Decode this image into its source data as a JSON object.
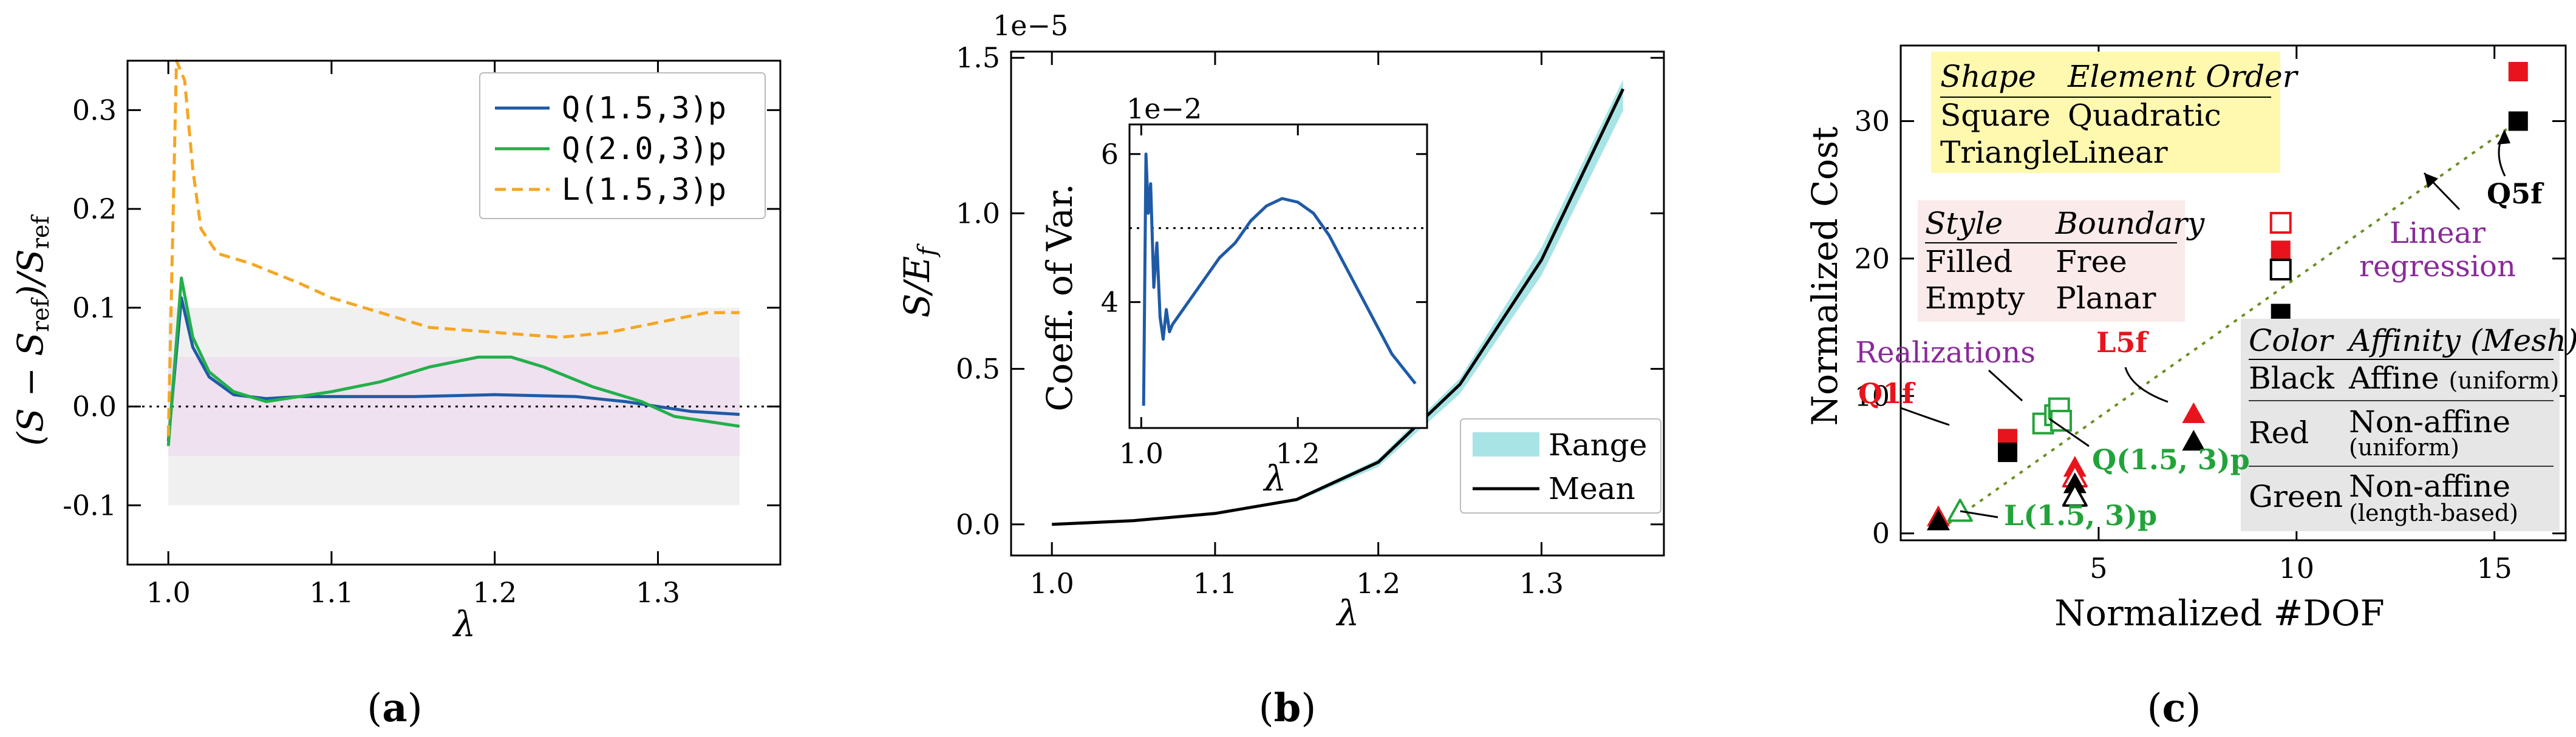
{
  "chart_data": [
    {
      "id": "a",
      "type": "line",
      "panel_label": "(a)",
      "xlabel": "λ",
      "ylabel": "(S − S_ref)/S_ref",
      "xlim": [
        0.975,
        1.375
      ],
      "ylim": [
        -0.16,
        0.35
      ],
      "xticks": [
        1.0,
        1.1,
        1.2,
        1.3
      ],
      "xtick_labels": [
        "1.0",
        "1.1",
        "1.2",
        "1.3"
      ],
      "yticks": [
        -0.1,
        0.0,
        0.1,
        0.2,
        0.3
      ],
      "ytick_labels": [
        "-0.1",
        "0.0",
        "0.1",
        "0.2",
        "0.3"
      ],
      "bands": [
        {
          "name": "±10% band",
          "x": [
            1.0,
            1.35
          ],
          "y": [
            -0.1,
            0.1
          ],
          "color": "#f0f0f0"
        },
        {
          "name": "±5% band",
          "x": [
            1.0,
            1.35
          ],
          "y": [
            -0.05,
            0.05
          ],
          "color": "#efe1ef"
        }
      ],
      "hline": 0.0,
      "legend_position": "top-right",
      "series": [
        {
          "name": "Q(1.5,3)p",
          "color": "#1f5aa6",
          "dash": false,
          "x": [
            1.0,
            1.008,
            1.015,
            1.025,
            1.04,
            1.06,
            1.08,
            1.1,
            1.15,
            1.2,
            1.25,
            1.28,
            1.3,
            1.32,
            1.35
          ],
          "y": [
            -0.035,
            0.11,
            0.06,
            0.03,
            0.012,
            0.008,
            0.01,
            0.01,
            0.01,
            0.012,
            0.01,
            0.005,
            0.0,
            -0.005,
            -0.008
          ]
        },
        {
          "name": "Q(2.0,3)p",
          "color": "#22b04a",
          "dash": false,
          "x": [
            1.0,
            1.008,
            1.015,
            1.025,
            1.04,
            1.06,
            1.08,
            1.1,
            1.13,
            1.16,
            1.19,
            1.21,
            1.23,
            1.26,
            1.29,
            1.31,
            1.33,
            1.35
          ],
          "y": [
            -0.04,
            0.13,
            0.07,
            0.035,
            0.015,
            0.005,
            0.01,
            0.015,
            0.025,
            0.04,
            0.05,
            0.05,
            0.04,
            0.02,
            0.005,
            -0.01,
            -0.015,
            -0.02
          ]
        },
        {
          "name": "L(1.5,3)p",
          "color": "#f5a623",
          "dash": true,
          "x": [
            1.0,
            1.005,
            1.01,
            1.015,
            1.02,
            1.03,
            1.05,
            1.08,
            1.1,
            1.13,
            1.16,
            1.2,
            1.24,
            1.27,
            1.3,
            1.33,
            1.35
          ],
          "y": [
            -0.03,
            0.35,
            0.33,
            0.24,
            0.18,
            0.155,
            0.145,
            0.125,
            0.11,
            0.095,
            0.08,
            0.075,
            0.07,
            0.075,
            0.085,
            0.095,
            0.095
          ]
        }
      ]
    },
    {
      "id": "b",
      "type": "line",
      "panel_label": "(b)",
      "xlabel": "λ",
      "ylabel": "S/E_f",
      "y_offset_label": "1e−5",
      "xlim": [
        0.975,
        1.375
      ],
      "ylim": [
        -0.1,
        1.52
      ],
      "xticks": [
        1.0,
        1.1,
        1.2,
        1.3
      ],
      "xtick_labels": [
        "1.0",
        "1.1",
        "1.2",
        "1.3"
      ],
      "yticks": [
        0.0,
        0.5,
        1.0,
        1.5
      ],
      "ytick_labels": [
        "0.0",
        "0.5",
        "1.0",
        "1.5"
      ],
      "legend_position": "bottom-right",
      "legend": [
        {
          "name": "Range",
          "color": "#a8e4e6",
          "kind": "patch"
        },
        {
          "name": "Mean",
          "color": "#000000",
          "kind": "line"
        }
      ],
      "series": [
        {
          "name": "Mean",
          "color": "#000000",
          "x": [
            1.0,
            1.05,
            1.1,
            1.15,
            1.2,
            1.25,
            1.3,
            1.35
          ],
          "y": [
            0.0,
            0.012,
            0.035,
            0.08,
            0.2,
            0.45,
            0.85,
            1.4
          ]
        }
      ],
      "range_band": {
        "name": "Range",
        "x": [
          1.0,
          1.05,
          1.1,
          1.15,
          1.2,
          1.25,
          1.3,
          1.35
        ],
        "lower": [
          0.0,
          0.011,
          0.032,
          0.074,
          0.185,
          0.42,
          0.8,
          1.33
        ],
        "upper": [
          0.0,
          0.013,
          0.037,
          0.085,
          0.21,
          0.47,
          0.89,
          1.43
        ]
      },
      "inset": {
        "type": "line",
        "ylabel": "Coeff. of Var.",
        "xlabel": "λ",
        "y_offset_label": "1e−2",
        "xlim": [
          0.985,
          1.365
        ],
        "ylim": [
          2.3,
          6.4
        ],
        "xticks": [
          1.0,
          1.2
        ],
        "xtick_labels": [
          "1.0",
          "1.2"
        ],
        "yticks": [
          4,
          6
        ],
        "ytick_labels": [
          "4",
          "6"
        ],
        "hline": 5.0,
        "series": [
          {
            "name": "Coeff. of Var.",
            "color": "#1f5aa6",
            "x": [
              1.003,
              1.006,
              1.009,
              1.012,
              1.016,
              1.02,
              1.024,
              1.028,
              1.032,
              1.036,
              1.04,
              1.05,
              1.06,
              1.08,
              1.1,
              1.12,
              1.14,
              1.16,
              1.18,
              1.2,
              1.22,
              1.24,
              1.26,
              1.28,
              1.3,
              1.32,
              1.35
            ],
            "y": [
              2.6,
              6.0,
              5.2,
              5.6,
              4.2,
              4.8,
              3.8,
              3.5,
              3.9,
              3.6,
              3.7,
              3.85,
              4.0,
              4.3,
              4.6,
              4.8,
              5.1,
              5.3,
              5.4,
              5.35,
              5.2,
              4.9,
              4.5,
              4.1,
              3.7,
              3.3,
              2.9
            ]
          }
        ]
      }
    },
    {
      "id": "c",
      "type": "scatter",
      "panel_label": "(c)",
      "xlabel": "Normalized #DOF",
      "ylabel": "Normalized Cost",
      "xlim": [
        0.0,
        16.8
      ],
      "ylim": [
        -0.5,
        35.5
      ],
      "xticks": [
        5,
        10,
        15
      ],
      "xtick_labels": [
        "5",
        "10",
        "15"
      ],
      "yticks": [
        0,
        10,
        20,
        30
      ],
      "ytick_labels": [
        "0",
        "10",
        "20",
        "30"
      ],
      "regression": {
        "label": "Linear regression",
        "x": [
          1.0,
          15.6
        ],
        "y": [
          0.3,
          30.0
        ],
        "color": "#6b8e23"
      },
      "points": [
        {
          "x": 15.6,
          "y": 33.6,
          "shape": "square",
          "filled": true,
          "color": "#e8141c"
        },
        {
          "x": 15.6,
          "y": 30.0,
          "shape": "square",
          "filled": true,
          "color": "#000000"
        },
        {
          "x": 9.6,
          "y": 22.6,
          "shape": "square",
          "filled": false,
          "color": "#e8141c"
        },
        {
          "x": 9.6,
          "y": 20.6,
          "shape": "square",
          "filled": true,
          "color": "#e8141c"
        },
        {
          "x": 9.6,
          "y": 19.2,
          "shape": "square",
          "filled": false,
          "color": "#000000"
        },
        {
          "x": 9.6,
          "y": 16.0,
          "shape": "square",
          "filled": true,
          "color": "#000000"
        },
        {
          "x": 2.7,
          "y": 6.9,
          "shape": "square",
          "filled": true,
          "color": "#e8141c"
        },
        {
          "x": 2.7,
          "y": 5.9,
          "shape": "square",
          "filled": true,
          "color": "#000000"
        },
        {
          "x": 3.6,
          "y": 8.0,
          "shape": "square",
          "filled": false,
          "color": "#22a33a"
        },
        {
          "x": 3.9,
          "y": 8.6,
          "shape": "square",
          "filled": false,
          "color": "#22a33a"
        },
        {
          "x": 4.0,
          "y": 9.1,
          "shape": "square",
          "filled": false,
          "color": "#22a33a"
        },
        {
          "x": 4.05,
          "y": 8.2,
          "shape": "square",
          "filled": false,
          "color": "#22a33a"
        },
        {
          "x": 4.4,
          "y": 4.8,
          "shape": "triangle",
          "filled": true,
          "color": "#e8141c"
        },
        {
          "x": 4.4,
          "y": 4.1,
          "shape": "triangle",
          "filled": false,
          "color": "#e8141c"
        },
        {
          "x": 4.4,
          "y": 3.6,
          "shape": "triangle",
          "filled": true,
          "color": "#000000"
        },
        {
          "x": 4.4,
          "y": 2.7,
          "shape": "triangle",
          "filled": false,
          "color": "#000000"
        },
        {
          "x": 7.4,
          "y": 8.7,
          "shape": "triangle",
          "filled": true,
          "color": "#e8141c"
        },
        {
          "x": 7.4,
          "y": 6.7,
          "shape": "triangle",
          "filled": true,
          "color": "#000000"
        },
        {
          "x": 0.95,
          "y": 1.2,
          "shape": "triangle",
          "filled": true,
          "color": "#e8141c"
        },
        {
          "x": 0.95,
          "y": 0.9,
          "shape": "triangle",
          "filled": true,
          "color": "#000000"
        },
        {
          "x": 1.5,
          "y": 1.6,
          "shape": "triangle",
          "filled": false,
          "color": "#22a33a"
        }
      ],
      "annotations": [
        {
          "text": "Q5f",
          "color": "#000000",
          "bold": true
        },
        {
          "text": "L5f",
          "color": "#e8141c",
          "bold": true
        },
        {
          "text": "Q1f",
          "color": "#e8141c",
          "bold": true
        },
        {
          "text": "Realizations",
          "color": "#8a2a9a",
          "bold": false
        },
        {
          "text": "Q(1.5, 3)p",
          "color": "#22a33a",
          "bold": true
        },
        {
          "text": "L(1.5, 3)p",
          "color": "#22a33a",
          "bold": true
        },
        {
          "text_lines": [
            "Linear",
            "regression"
          ],
          "color": "#8a2a9a",
          "bold": false
        }
      ],
      "tables": {
        "shape": {
          "bg": "#fff9b0",
          "header": [
            "Shape",
            "Element Order"
          ],
          "rows": [
            [
              "Square",
              "Quadratic"
            ],
            [
              "Triangle",
              "Linear"
            ]
          ]
        },
        "style": {
          "bg": "#fbeaea",
          "header": [
            "Style",
            "Boundary"
          ],
          "rows": [
            [
              "Filled",
              "Free"
            ],
            [
              "Empty",
              "Planar"
            ]
          ]
        },
        "color": {
          "bg": "#e6e6e6",
          "header": [
            "Color",
            "Affinity (Mesh)"
          ],
          "rows": [
            {
              "name": "Black",
              "desc": "Affine",
              "sub": "(uniform)"
            },
            {
              "name": "Red",
              "desc": "Non-affine",
              "sub": "(uniform)"
            },
            {
              "name": "Green",
              "desc": "Non-affine",
              "sub": "(length-based)"
            }
          ]
        }
      }
    }
  ]
}
